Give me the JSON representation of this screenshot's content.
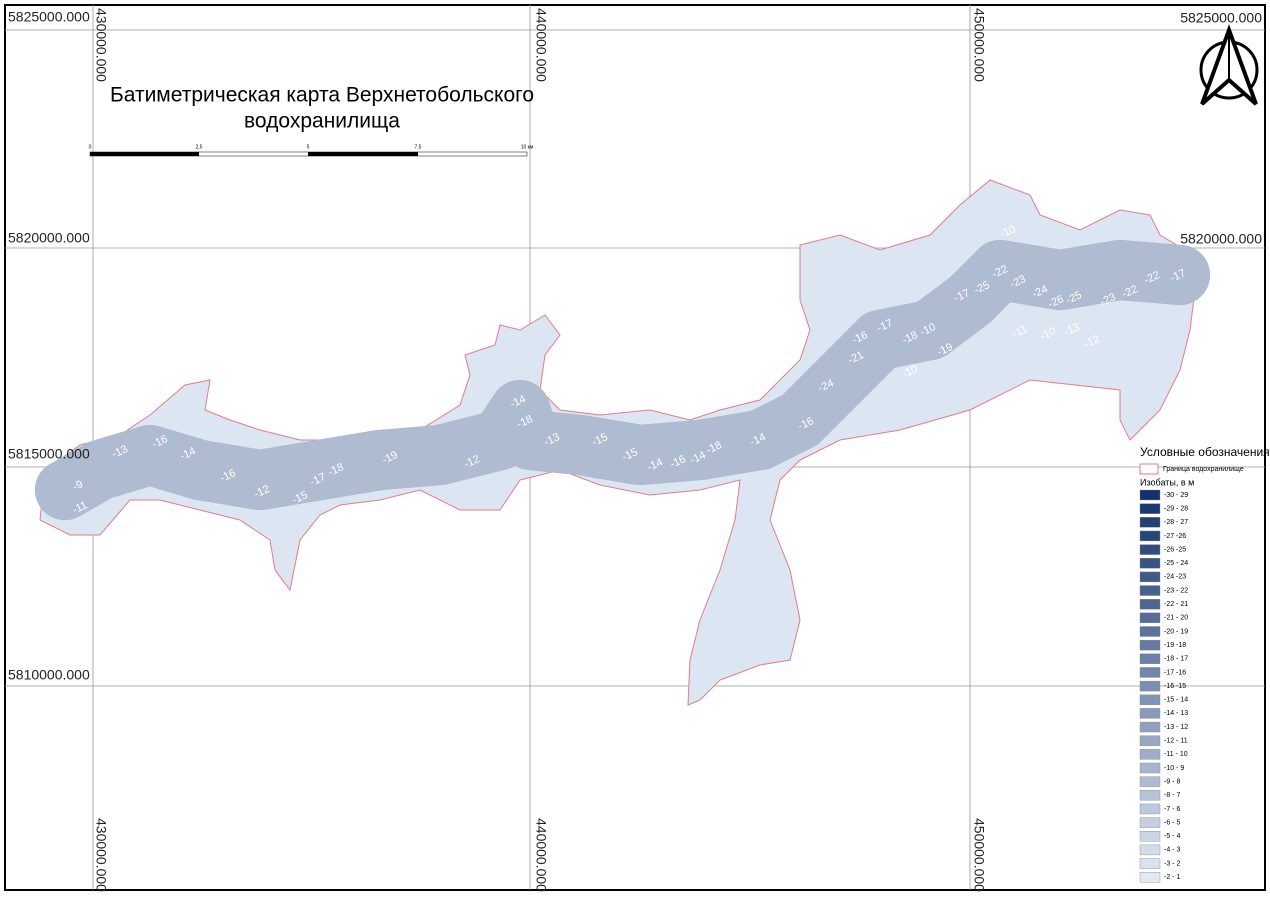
{
  "header": {
    "title_lines": [
      "Батиметрическая карта Верхнетобольского",
      "водохранилища"
    ]
  },
  "grid": {
    "northings": [
      "5825000.000",
      "5820000.000",
      "5815000.000",
      "5810000.000"
    ],
    "eastings": [
      "430000.000",
      "440000.000",
      "450000.000"
    ]
  },
  "scale_bar": {
    "labels": [
      "0",
      "2,5",
      "5",
      "7,5",
      "10 км"
    ]
  },
  "legend": {
    "title": "Условные обозначения",
    "boundary": "Граница водохранилище",
    "depth_title": "Изобаты, в м",
    "items": [
      "-30 - 29",
      "-29 - 28",
      "-28 - 27",
      "-27 -26",
      "-26 -25",
      "-25 - 24",
      "-24 -23",
      "-23 - 22",
      "-22 - 21",
      "-21 - 20",
      "-20 - 19",
      "-19 -18",
      "-18 - 17",
      "-17 -16",
      "-16 -15",
      "-15 - 14",
      "-14 - 13",
      "-13 - 12",
      "-12 - 11",
      "-11 - 10",
      "-10 - 9",
      "-9 - 8",
      "-8 - 7",
      "-7 - 6",
      "-6 - 5",
      "-5 - 4",
      "-4 - 3",
      "-3 - 2",
      "-2 - 1"
    ]
  },
  "depth_labels": [
    "-11",
    "-9",
    "-13",
    "-16",
    "-14",
    "-16",
    "-12",
    "-15",
    "-17",
    "-18",
    "-19",
    "-12",
    "-14",
    "-18",
    "-13",
    "-15",
    "-15",
    "-14",
    "-16",
    "-14",
    "-18",
    "-14",
    "-16",
    "-24",
    "-21",
    "-16",
    "-17",
    "-18",
    "-10",
    "-10",
    "-19",
    "-17",
    "-25",
    "-22",
    "-10",
    "-23",
    "-24",
    "-26",
    "-25",
    "-23",
    "-22",
    "-22",
    "-17",
    "-11",
    "-10",
    "-13",
    "-12"
  ]
}
